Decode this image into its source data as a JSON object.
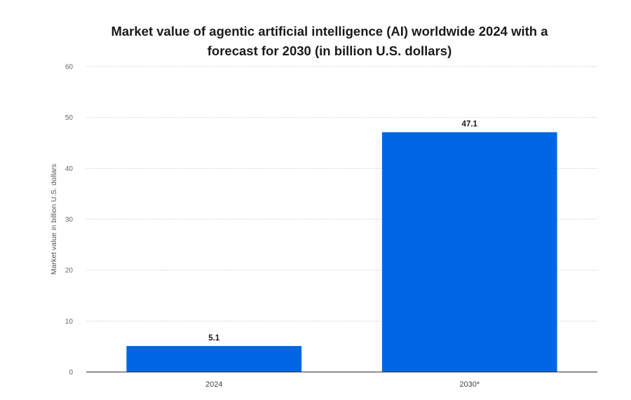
{
  "chart_data": {
    "type": "bar",
    "title": "Market value of agentic artificial intelligence (AI) worldwide 2024 with a forecast for 2030 (in billion U.S. dollars)",
    "title_lines": [
      "Market value of agentic artificial intelligence (AI) worldwide 2024 with a",
      "forecast for 2030 (in billion U.S. dollars)"
    ],
    "xlabel": "",
    "ylabel": "Market value in billion U.S. dollars",
    "categories": [
      "2024",
      "2030*"
    ],
    "values": [
      5.1,
      47.1
    ],
    "data_labels": [
      "5.1",
      "47.1"
    ],
    "ylim": [
      0,
      60
    ],
    "yticks": [
      0,
      10,
      20,
      30,
      40,
      50,
      60
    ],
    "grid": true,
    "legend": "none",
    "bar_color": "#0066e5"
  }
}
